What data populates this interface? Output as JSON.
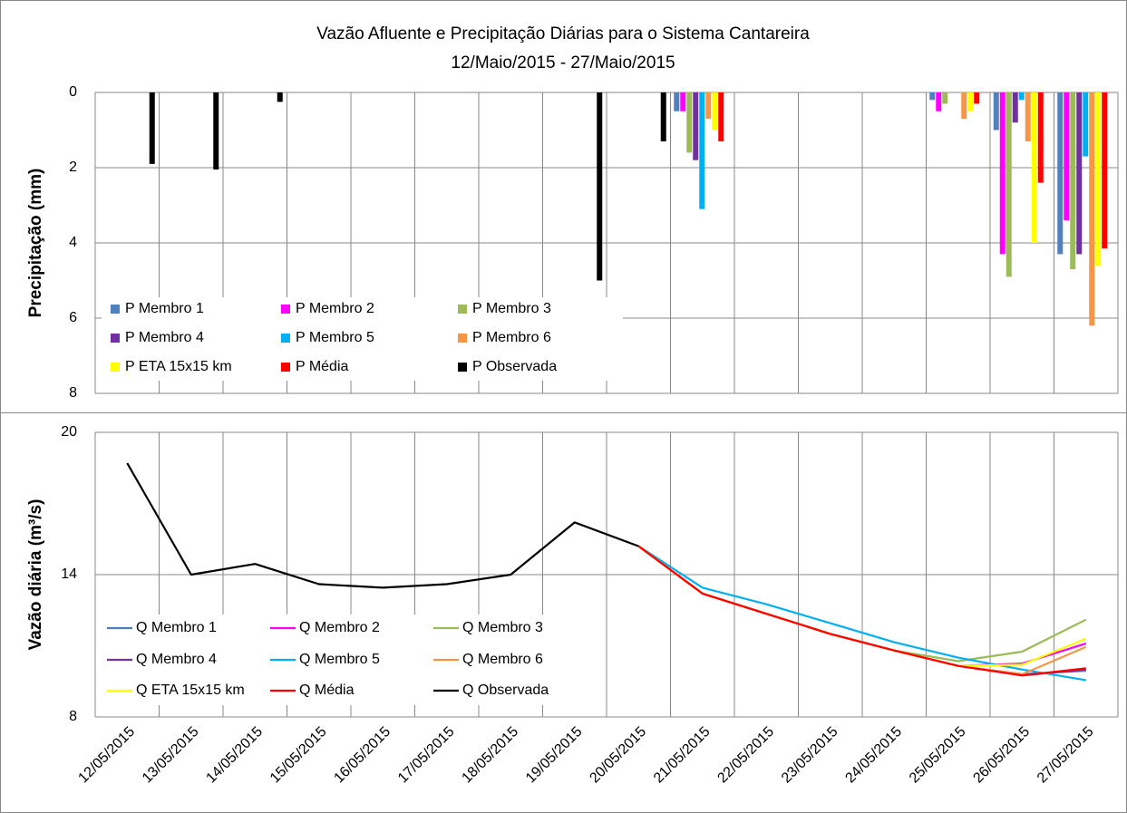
{
  "chart_data": [
    {
      "type": "bar",
      "title": "Vazão Afluente e Precipitação Diárias para o Sistema Cantareira",
      "subtitle": "12/Maio/2015 - 27/Maio/2015",
      "y_label": "Precipitação (mm)",
      "ylim": [
        0,
        8
      ],
      "yticks": [
        0,
        2,
        4,
        6,
        8
      ],
      "y_reversed": true,
      "grid": true,
      "series": [
        {
          "name": "P Membro 1",
          "color": "#4f81bd",
          "values": [
            null,
            null,
            null,
            null,
            null,
            null,
            null,
            null,
            null,
            0.5,
            0,
            0,
            0,
            0.2,
            1.0,
            4.3
          ]
        },
        {
          "name": "P Membro 2",
          "color": "#ff00ff",
          "values": [
            null,
            null,
            null,
            null,
            null,
            null,
            null,
            null,
            null,
            0.5,
            0,
            0,
            0,
            0.5,
            4.3,
            3.4
          ]
        },
        {
          "name": "P Membro 3",
          "color": "#9bbb59",
          "values": [
            null,
            null,
            null,
            null,
            null,
            null,
            null,
            null,
            null,
            1.6,
            0,
            0,
            0,
            0.3,
            4.9,
            4.7
          ]
        },
        {
          "name": "P Membro 4",
          "color": "#7030a0",
          "values": [
            null,
            null,
            null,
            null,
            null,
            null,
            null,
            null,
            null,
            1.8,
            0,
            0,
            0,
            0,
            0.8,
            4.3
          ]
        },
        {
          "name": "P Membro 5",
          "color": "#00b0f0",
          "values": [
            null,
            null,
            null,
            null,
            null,
            null,
            null,
            null,
            null,
            3.1,
            0,
            0,
            0,
            0,
            0.2,
            1.7
          ]
        },
        {
          "name": "P Membro 6",
          "color": "#f79646",
          "values": [
            null,
            null,
            null,
            null,
            null,
            null,
            null,
            null,
            null,
            0.7,
            0,
            0,
            0,
            0.7,
            1.3,
            6.2
          ]
        },
        {
          "name": "P ETA 15x15 km",
          "color": "#ffff00",
          "values": [
            null,
            null,
            null,
            null,
            null,
            null,
            null,
            null,
            null,
            1.0,
            0,
            0,
            0,
            0.5,
            4.0,
            4.6
          ]
        },
        {
          "name": "P Média",
          "color": "#ff0000",
          "values": [
            null,
            null,
            null,
            null,
            null,
            null,
            null,
            null,
            null,
            1.3,
            0,
            0,
            0,
            0.3,
            2.4,
            4.15
          ]
        },
        {
          "name": "P Observada",
          "color": "#000000",
          "values": [
            1.9,
            2.05,
            0.25,
            0,
            0,
            0,
            0,
            5.0,
            1.3,
            null,
            null,
            null,
            null,
            null,
            null,
            null
          ]
        }
      ]
    },
    {
      "type": "line",
      "y_label": "Vazão diária (m³/s)",
      "categories": [
        "12/05/2015",
        "13/05/2015",
        "14/05/2015",
        "15/05/2015",
        "16/05/2015",
        "17/05/2015",
        "18/05/2015",
        "19/05/2015",
        "20/05/2015",
        "21/05/2015",
        "22/05/2015",
        "23/05/2015",
        "24/05/2015",
        "25/05/2015",
        "26/05/2015",
        "27/05/2015"
      ],
      "ylim": [
        8,
        20
      ],
      "yticks": [
        8,
        14,
        20
      ],
      "grid": true,
      "series": [
        {
          "name": "Q Membro 1",
          "color": "#4a7ebb",
          "values": [
            null,
            null,
            null,
            null,
            null,
            null,
            null,
            null,
            15.2,
            13.2,
            12.35,
            11.5,
            10.8,
            10.15,
            9.8,
            9.95
          ]
        },
        {
          "name": "Q Membro 2",
          "color": "#ff00ff",
          "values": [
            null,
            null,
            null,
            null,
            null,
            null,
            null,
            null,
            15.2,
            13.2,
            12.35,
            11.5,
            10.8,
            10.15,
            10.25,
            11.1
          ]
        },
        {
          "name": "Q Membro 3",
          "color": "#9bbb59",
          "values": [
            null,
            null,
            null,
            null,
            null,
            null,
            null,
            null,
            15.2,
            13.2,
            12.35,
            11.5,
            10.8,
            10.35,
            10.75,
            12.1
          ]
        },
        {
          "name": "Q Membro 4",
          "color": "#7030a0",
          "values": [
            null,
            null,
            null,
            null,
            null,
            null,
            null,
            null,
            15.2,
            13.2,
            12.35,
            11.5,
            10.8,
            10.15,
            9.75,
            10.0
          ]
        },
        {
          "name": "Q Membro 5",
          "color": "#00b0f0",
          "values": [
            null,
            null,
            null,
            null,
            null,
            null,
            null,
            null,
            15.2,
            13.45,
            12.75,
            11.95,
            11.15,
            10.5,
            10.0,
            9.55
          ]
        },
        {
          "name": "Q Membro 6",
          "color": "#f79646",
          "values": [
            null,
            null,
            null,
            null,
            null,
            null,
            null,
            null,
            15.2,
            13.2,
            12.35,
            11.5,
            10.8,
            10.15,
            9.8,
            10.95
          ]
        },
        {
          "name": "Q ETA 15x15 km",
          "color": "#ffff00",
          "values": [
            null,
            null,
            null,
            null,
            null,
            null,
            null,
            null,
            15.2,
            13.2,
            12.35,
            11.5,
            10.8,
            10.15,
            10.2,
            11.3
          ]
        },
        {
          "name": "Q Média",
          "color": "#ff0000",
          "values": [
            null,
            null,
            null,
            null,
            null,
            null,
            null,
            null,
            15.2,
            13.2,
            12.35,
            11.5,
            10.8,
            10.15,
            9.75,
            10.05
          ]
        },
        {
          "name": "Q Observada",
          "color": "#000000",
          "values": [
            18.7,
            14.0,
            14.45,
            13.6,
            13.45,
            13.6,
            14.0,
            16.2,
            15.2,
            null,
            null,
            null,
            null,
            null,
            null,
            null
          ]
        }
      ]
    }
  ]
}
